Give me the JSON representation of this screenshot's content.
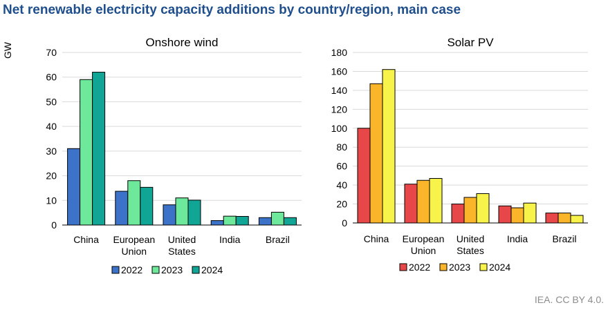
{
  "title": "Net renewable electricity capacity additions by country/region, main case",
  "source": "IEA. CC BY 4.0.",
  "chart_data": [
    {
      "type": "bar",
      "title": "Onshore wind",
      "ylabel": "GW",
      "ylim": [
        0,
        70
      ],
      "yticks": [
        0,
        10,
        20,
        30,
        40,
        50,
        60,
        70
      ],
      "grid": true,
      "legend_position": "bottom",
      "categories": [
        [
          "China"
        ],
        [
          "European",
          "Union"
        ],
        [
          "United",
          "States"
        ],
        [
          "India"
        ],
        [
          "Brazil"
        ]
      ],
      "series": [
        {
          "name": "2022",
          "color": "#3c73c8",
          "values": [
            31,
            13.7,
            8.2,
            1.8,
            3
          ]
        },
        {
          "name": "2023",
          "color": "#6ee89b",
          "values": [
            59,
            18,
            11,
            3.6,
            5.2
          ]
        },
        {
          "name": "2024",
          "color": "#10a595",
          "values": [
            62,
            15.3,
            10.1,
            3.5,
            3
          ]
        }
      ]
    },
    {
      "type": "bar",
      "title": "Solar PV",
      "ylabel": "",
      "ylim": [
        0,
        180
      ],
      "yticks": [
        0,
        20,
        40,
        60,
        80,
        100,
        120,
        140,
        160,
        180
      ],
      "grid": true,
      "legend_position": "bottom",
      "categories": [
        [
          "China"
        ],
        [
          "European",
          "Union"
        ],
        [
          "United",
          "States"
        ],
        [
          "India"
        ],
        [
          "Brazil"
        ]
      ],
      "series": [
        {
          "name": "2022",
          "color": "#e8474a",
          "values": [
            100,
            41,
            20,
            18,
            10.5
          ]
        },
        {
          "name": "2023",
          "color": "#fbb52a",
          "values": [
            147,
            45,
            27,
            16,
            10.5
          ]
        },
        {
          "name": "2024",
          "color": "#f8f34a",
          "values": [
            162,
            47,
            31,
            21,
            8
          ]
        }
      ]
    }
  ]
}
